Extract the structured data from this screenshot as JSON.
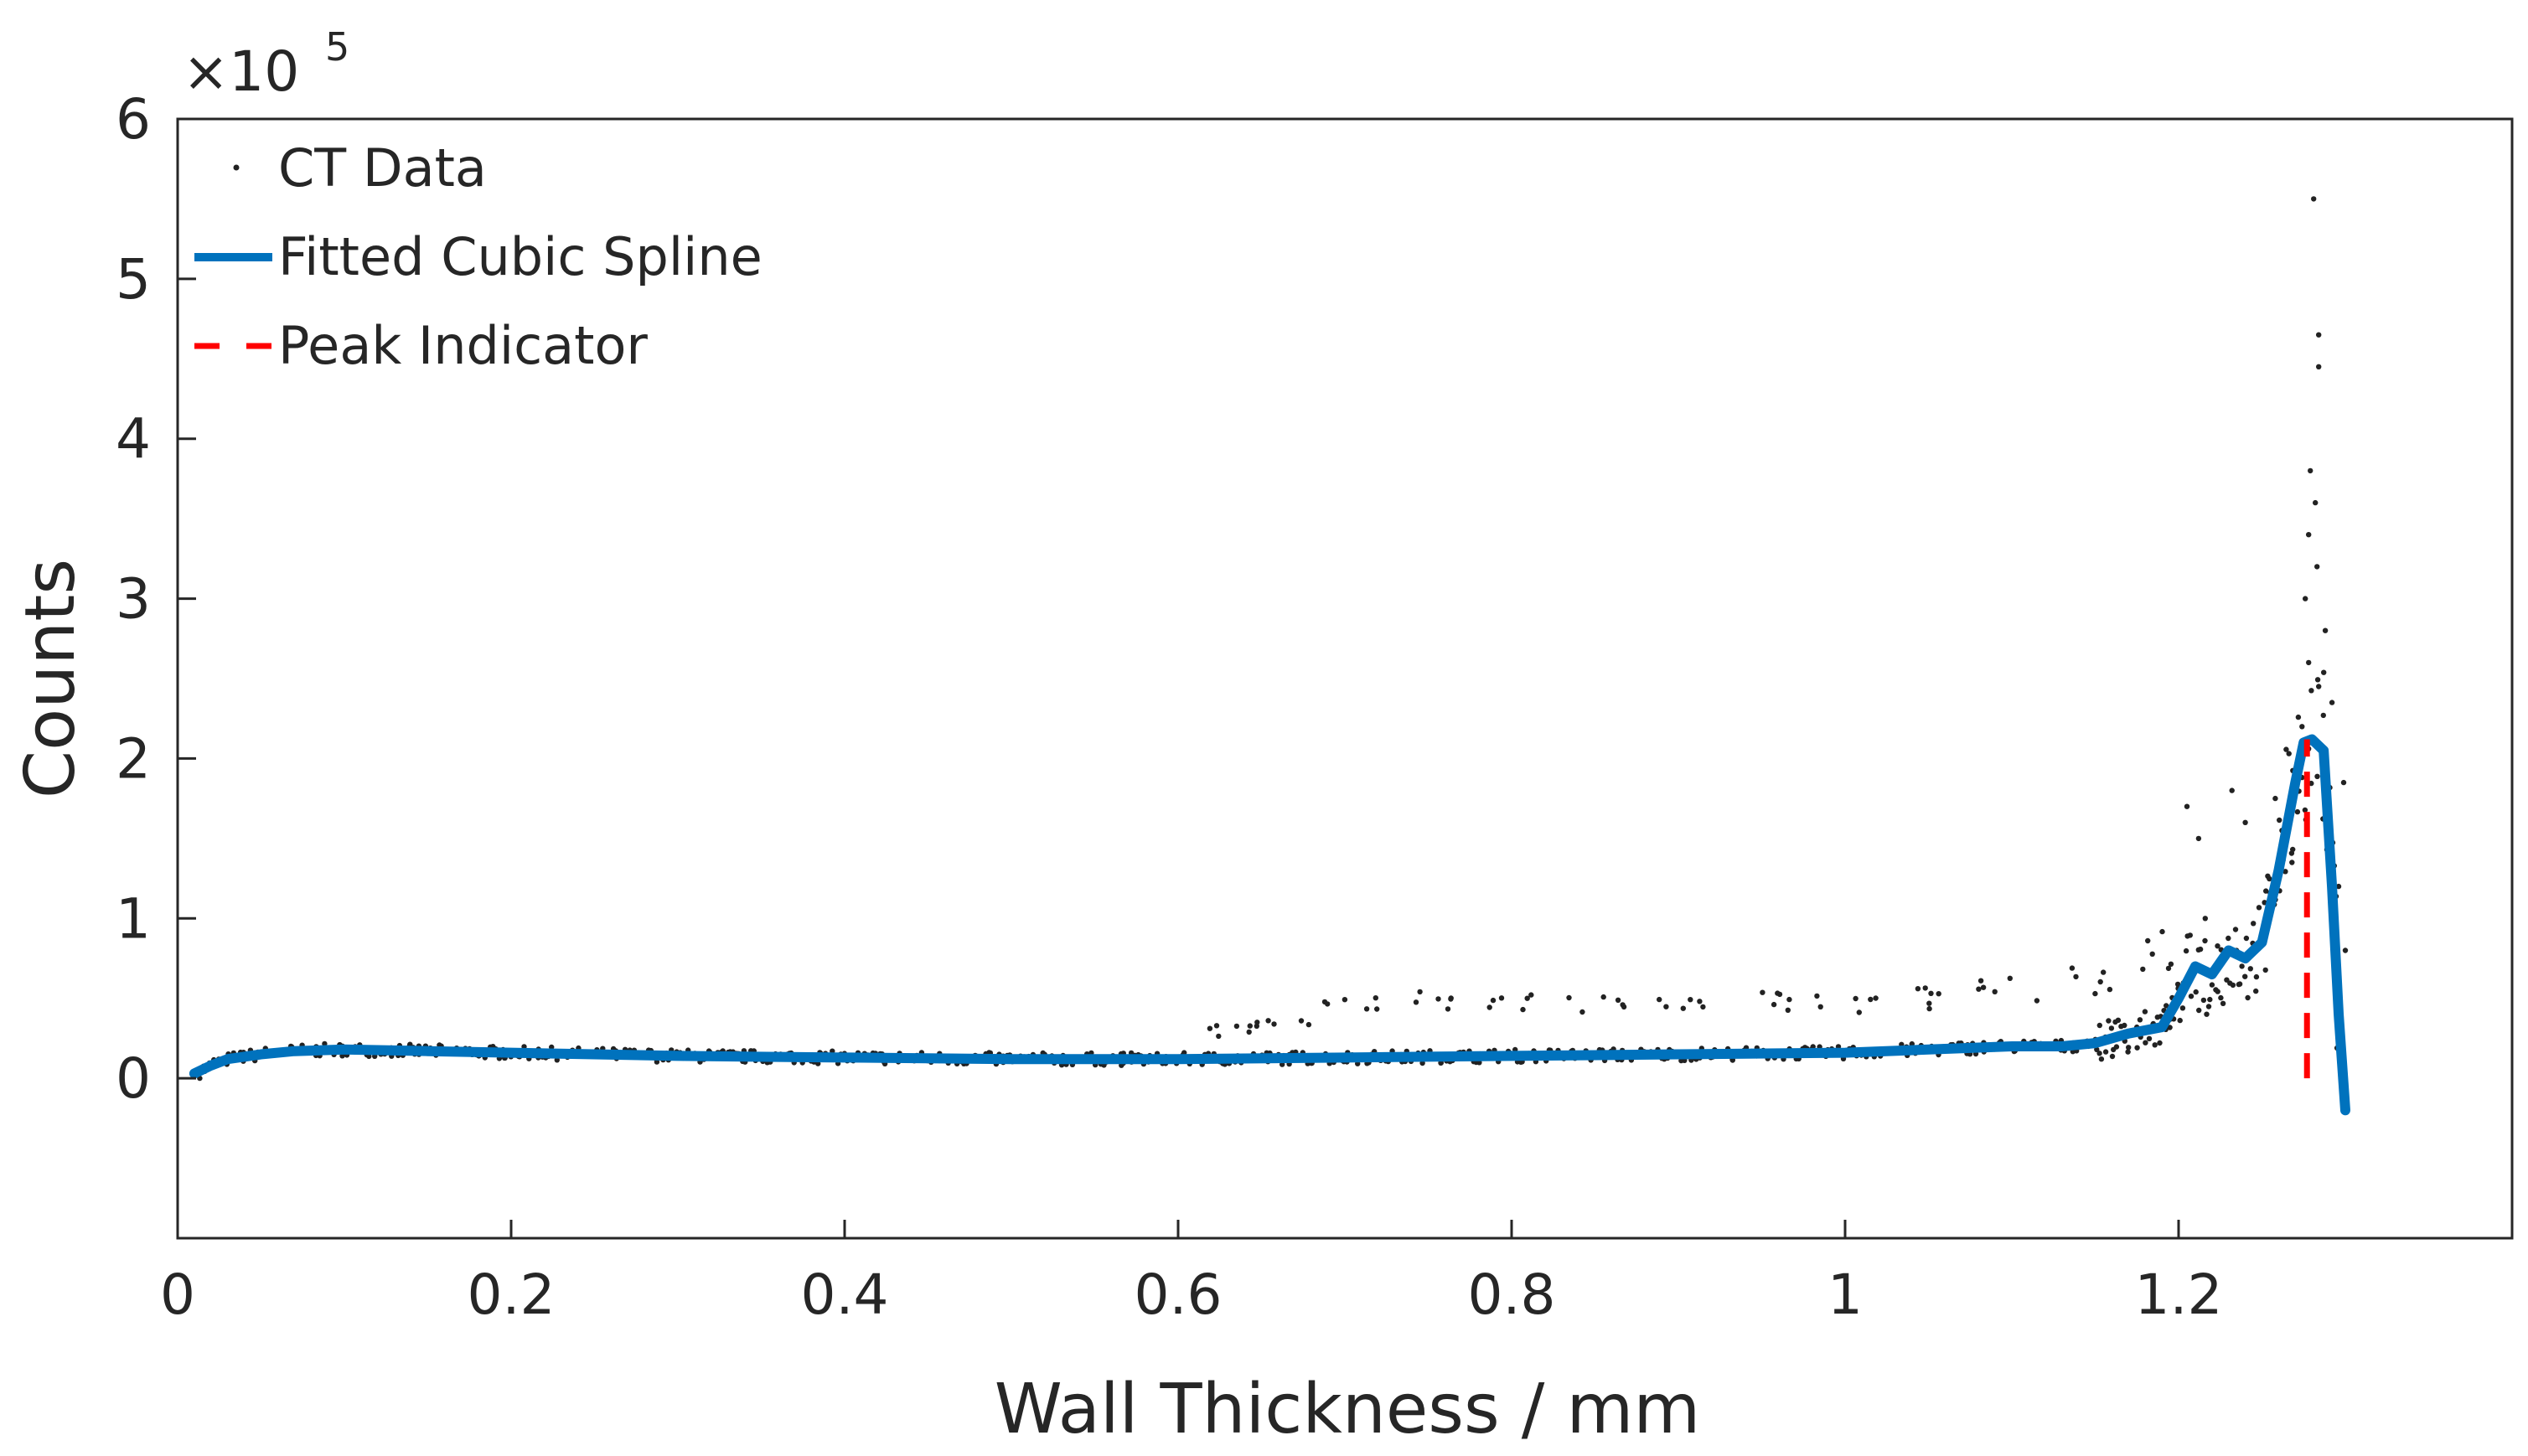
{
  "chart_data": {
    "type": "scatter",
    "title": "",
    "xlabel": "Wall Thickness / mm",
    "ylabel": "Counts",
    "y_scale_label": "×10",
    "y_scale_exponent": "5",
    "y_scale_multiplier": 100000,
    "xlim": [
      0,
      1.4
    ],
    "ylim": [
      -1,
      6
    ],
    "x_ticks": [
      0,
      0.2,
      0.4,
      0.6,
      0.8,
      1,
      1.2
    ],
    "x_tick_labels": [
      "0",
      "0.2",
      "0.4",
      "0.6",
      "0.8",
      "1",
      "1.2"
    ],
    "y_ticks": [
      0,
      1,
      2,
      3,
      4,
      5,
      6
    ],
    "y_tick_labels": [
      "0",
      "1",
      "2",
      "3",
      "4",
      "5",
      "6"
    ],
    "grid": false,
    "legend_position": "top-left",
    "series": [
      {
        "name": "CT Data",
        "type": "scatter",
        "color": "#222222",
        "noise_seed": 7,
        "spikes": [
          [
            1.281,
            5.5
          ],
          [
            1.284,
            4.65
          ],
          [
            1.284,
            4.45
          ],
          [
            1.279,
            3.8
          ],
          [
            1.282,
            3.6
          ],
          [
            1.278,
            3.4
          ],
          [
            1.283,
            3.2
          ],
          [
            1.276,
            3.0
          ],
          [
            1.288,
            2.8
          ],
          [
            1.284,
            2.45
          ],
          [
            1.292,
            2.35
          ],
          [
            1.278,
            2.6
          ],
          [
            1.274,
            2.2
          ],
          [
            1.299,
            1.85
          ],
          [
            1.205,
            1.7
          ],
          [
            1.212,
            1.5
          ],
          [
            1.232,
            1.8
          ],
          [
            1.24,
            1.6
          ],
          [
            1.258,
            1.75
          ],
          [
            1.262,
            1.55
          ],
          [
            1.268,
            1.35
          ],
          [
            1.296,
            1.2
          ],
          [
            1.3,
            0.8
          ],
          [
            1.216,
            1.0
          ]
        ],
        "upper_band": [
          [
            0.63,
            0.3
          ],
          [
            0.66,
            0.35
          ],
          [
            0.7,
            0.45
          ],
          [
            0.75,
            0.48
          ],
          [
            0.8,
            0.48
          ],
          [
            0.85,
            0.46
          ],
          [
            0.9,
            0.5
          ],
          [
            0.95,
            0.48
          ],
          [
            1.0,
            0.45
          ],
          [
            1.05,
            0.5
          ],
          [
            1.1,
            0.55
          ],
          [
            1.15,
            0.6
          ],
          [
            1.18,
            0.8
          ]
        ]
      },
      {
        "name": "Fitted Cubic Spline",
        "type": "line",
        "color": "#0072BD",
        "x": [
          0.01,
          0.02,
          0.03,
          0.05,
          0.07,
          0.1,
          0.15,
          0.2,
          0.3,
          0.4,
          0.5,
          0.6,
          0.7,
          0.8,
          0.9,
          1.0,
          1.05,
          1.1,
          1.13,
          1.15,
          1.17,
          1.19,
          1.2,
          1.21,
          1.22,
          1.23,
          1.24,
          1.25,
          1.26,
          1.27,
          1.275,
          1.28,
          1.287,
          1.292,
          1.296,
          1.3
        ],
        "y": [
          0.03,
          0.08,
          0.12,
          0.15,
          0.17,
          0.18,
          0.17,
          0.16,
          0.14,
          0.13,
          0.12,
          0.12,
          0.13,
          0.14,
          0.15,
          0.16,
          0.18,
          0.2,
          0.2,
          0.22,
          0.28,
          0.32,
          0.5,
          0.7,
          0.65,
          0.8,
          0.75,
          0.85,
          1.3,
          1.85,
          2.1,
          2.12,
          2.05,
          1.2,
          0.4,
          -0.2
        ]
      },
      {
        "name": "Peak Indicator",
        "type": "line",
        "style": "dashed",
        "color": "#FF0000",
        "x": [
          1.277,
          1.277
        ],
        "y": [
          0,
          2.12
        ]
      }
    ]
  }
}
